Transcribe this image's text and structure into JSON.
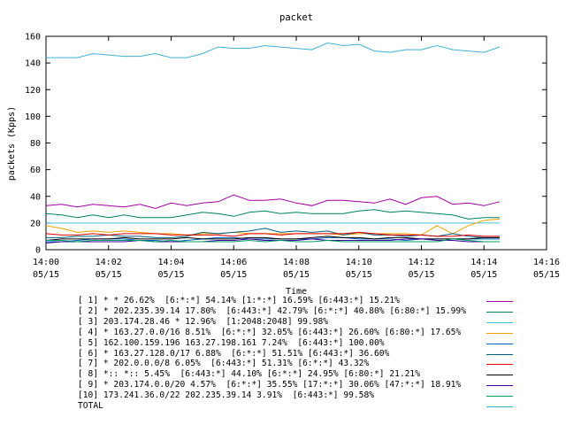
{
  "chart_data": {
    "type": "line",
    "title": "packet",
    "xlabel": "Time",
    "ylabel": "packets (Kpps)",
    "ylim": [
      0,
      160
    ],
    "yticks": [
      0,
      20,
      40,
      60,
      80,
      100,
      120,
      140,
      160
    ],
    "xlim_minutes": [
      0,
      16
    ],
    "xticks": [
      {
        "time": "14:00",
        "date": "05/15"
      },
      {
        "time": "14:02",
        "date": "05/15"
      },
      {
        "time": "14:04",
        "date": "05/15"
      },
      {
        "time": "14:06",
        "date": "05/15"
      },
      {
        "time": "14:08",
        "date": "05/15"
      },
      {
        "time": "14:10",
        "date": "05/15"
      },
      {
        "time": "14:12",
        "date": "05/15"
      },
      {
        "time": "14:14",
        "date": "05/15"
      },
      {
        "time": "14:16",
        "date": "05/15"
      }
    ],
    "grid": false,
    "legend_position": "bottom",
    "x": [
      "14:00",
      "14:00:30",
      "14:01",
      "14:01:30",
      "14:02",
      "14:02:30",
      "14:03",
      "14:03:30",
      "14:04",
      "14:04:30",
      "14:05",
      "14:05:30",
      "14:06",
      "14:06:30",
      "14:07",
      "14:07:30",
      "14:08",
      "14:08:30",
      "14:09",
      "14:09:30",
      "14:10",
      "14:10:30",
      "14:11",
      "14:11:30",
      "14:12",
      "14:12:30",
      "14:13",
      "14:13:30",
      "14:14",
      "14:14:30"
    ],
    "series": [
      {
        "name": "[ 1] * * 26.62%  [6:*:*] 54.14% [1:*:*] 16.59% [6:443:*] 15.21%",
        "color": "#a000a0",
        "values": [
          33,
          34,
          32,
          34,
          33,
          32,
          34,
          31,
          35,
          33,
          35,
          36,
          41,
          37,
          37,
          38,
          35,
          33,
          37,
          37,
          36,
          35,
          38,
          34,
          39,
          40,
          34,
          35,
          33,
          36
        ]
      },
      {
        "name": "[ 2] * 202.235.39.14 17.80%  [6:443:*] 42.79% [6:*:*] 40.80% [6:80:*] 15.99%",
        "color": "#008060",
        "values": [
          27,
          26,
          24,
          26,
          24,
          26,
          24,
          24,
          24,
          26,
          28,
          27,
          25,
          28,
          29,
          27,
          28,
          27,
          27,
          27,
          29,
          30,
          28,
          29,
          28,
          27,
          26,
          23,
          24,
          24
        ]
      },
      {
        "name": "[ 3] 203.174.28.46 * 12.96%  [1:2048:2048] 99.98%",
        "color": "#40c0e0",
        "values": [
          20,
          20,
          20,
          20,
          20,
          20,
          20,
          20,
          20,
          20,
          20,
          20,
          20,
          20,
          20,
          20,
          20,
          20,
          20,
          20,
          20,
          20,
          20,
          20,
          20,
          20,
          20,
          20,
          20,
          20
        ]
      },
      {
        "name": "[ 4] * 163.27.0.0/16 8.51%  [6:*:*] 32.05% [6:443:*] 26.60% [6:80:*] 17.65%",
        "color": "#f0a000",
        "values": [
          18,
          16,
          13,
          14,
          13,
          14,
          13,
          12,
          12,
          11,
          12,
          12,
          13,
          12,
          12,
          12,
          12,
          12,
          12,
          11,
          12,
          12,
          12,
          12,
          11,
          18,
          12,
          18,
          22,
          23
        ]
      },
      {
        "name": "[ 5] 162.100.159.196 163.27.198.161 7.24%  [6:443:*] 100.00%",
        "color": "#0060c0",
        "values": [
          6,
          6,
          7,
          8,
          8,
          8,
          7,
          7,
          6,
          7,
          8,
          9,
          9,
          8,
          8,
          8,
          8,
          8,
          9,
          9,
          8,
          8,
          8,
          7,
          8,
          8,
          8,
          8,
          8,
          8
        ]
      },
      {
        "name": "[ 6] * 163.27.128.0/17 6.88%  [6:*:*] 51.51% [6:443:*] 36.60%",
        "color": "#006080",
        "values": [
          9,
          9,
          10,
          10,
          11,
          10,
          10,
          9,
          9,
          10,
          13,
          12,
          13,
          14,
          16,
          13,
          14,
          13,
          14,
          11,
          13,
          11,
          11,
          10,
          11,
          10,
          12,
          10,
          9,
          9
        ]
      },
      {
        "name": "[ 7] * 202.0.0.0/8 6.05%  [6:443:*] 51.31% [6:*:*] 43.32%",
        "color": "#e00000",
        "values": [
          12,
          11,
          11,
          12,
          11,
          12,
          12,
          12,
          11,
          11,
          11,
          11,
          10,
          12,
          12,
          11,
          12,
          12,
          12,
          12,
          13,
          12,
          11,
          11,
          11,
          10,
          10,
          11,
          10,
          10
        ]
      },
      {
        "name": "[ 8] *:: *:: 5.45%  [6:443:*] 44.10% [6:*:*] 24.95% [6:80:*] 21.21%",
        "color": "#000000",
        "values": [
          7,
          8,
          8,
          8,
          8,
          9,
          8,
          8,
          8,
          9,
          8,
          8,
          8,
          9,
          9,
          8,
          8,
          9,
          10,
          9,
          9,
          8,
          9,
          9,
          8,
          8,
          8,
          8,
          9,
          9
        ]
      },
      {
        "name": "[ 9] * 203.174.0.0/20 4.57%  [6:*:*] 35.55% [17:*:*] 30.06% [47:*:*] 18.91%",
        "color": "#4000a0",
        "values": [
          5,
          6,
          6,
          6,
          6,
          6,
          7,
          6,
          6,
          6,
          6,
          7,
          7,
          8,
          7,
          7,
          7,
          8,
          7,
          7,
          7,
          7,
          7,
          8,
          8,
          7,
          7,
          6,
          6,
          6
        ]
      },
      {
        "name": "[10] 173.241.36.0/22 202.235.39.14 3.91%  [6:443:*] 99.58%",
        "color": "#00a060",
        "values": [
          7,
          7,
          6,
          7,
          7,
          7,
          7,
          6,
          7,
          6,
          6,
          6,
          6,
          7,
          6,
          7,
          6,
          6,
          7,
          6,
          6,
          6,
          6,
          6,
          6,
          6,
          8,
          7,
          6,
          6
        ]
      },
      {
        "name": "TOTAL",
        "color": "#40b0d0",
        "values": [
          144,
          144,
          144,
          147,
          146,
          145,
          145,
          147,
          144,
          144,
          147,
          152,
          151,
          151,
          153,
          152,
          151,
          150,
          155,
          153,
          154,
          149,
          148,
          150,
          150,
          153,
          150,
          149,
          148,
          152
        ]
      }
    ]
  }
}
